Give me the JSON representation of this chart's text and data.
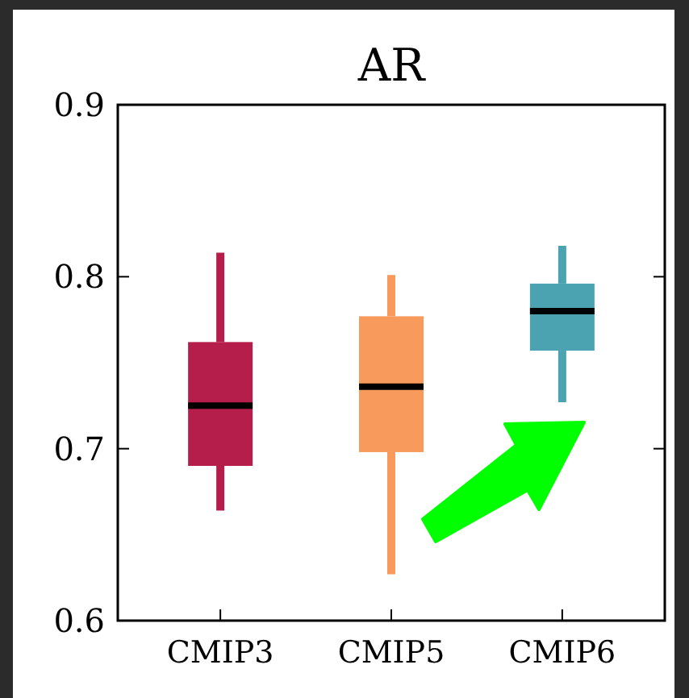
{
  "chart_data": {
    "type": "box",
    "title": "AR",
    "categories": [
      "CMIP3",
      "CMIP5",
      "CMIP6"
    ],
    "colors": [
      "#b51d4a",
      "#f79a5b",
      "#4ba3b1"
    ],
    "boxes": [
      {
        "low": 0.664,
        "q1": 0.69,
        "median": 0.725,
        "q3": 0.762,
        "high": 0.814
      },
      {
        "low": 0.627,
        "q1": 0.698,
        "median": 0.736,
        "q3": 0.777,
        "high": 0.801
      },
      {
        "low": 0.727,
        "q1": 0.757,
        "median": 0.78,
        "q3": 0.796,
        "high": 0.818
      }
    ],
    "ylim": [
      0.6,
      0.9
    ],
    "yticks": [
      0.6,
      0.7,
      0.8,
      0.9
    ],
    "grid": false
  }
}
